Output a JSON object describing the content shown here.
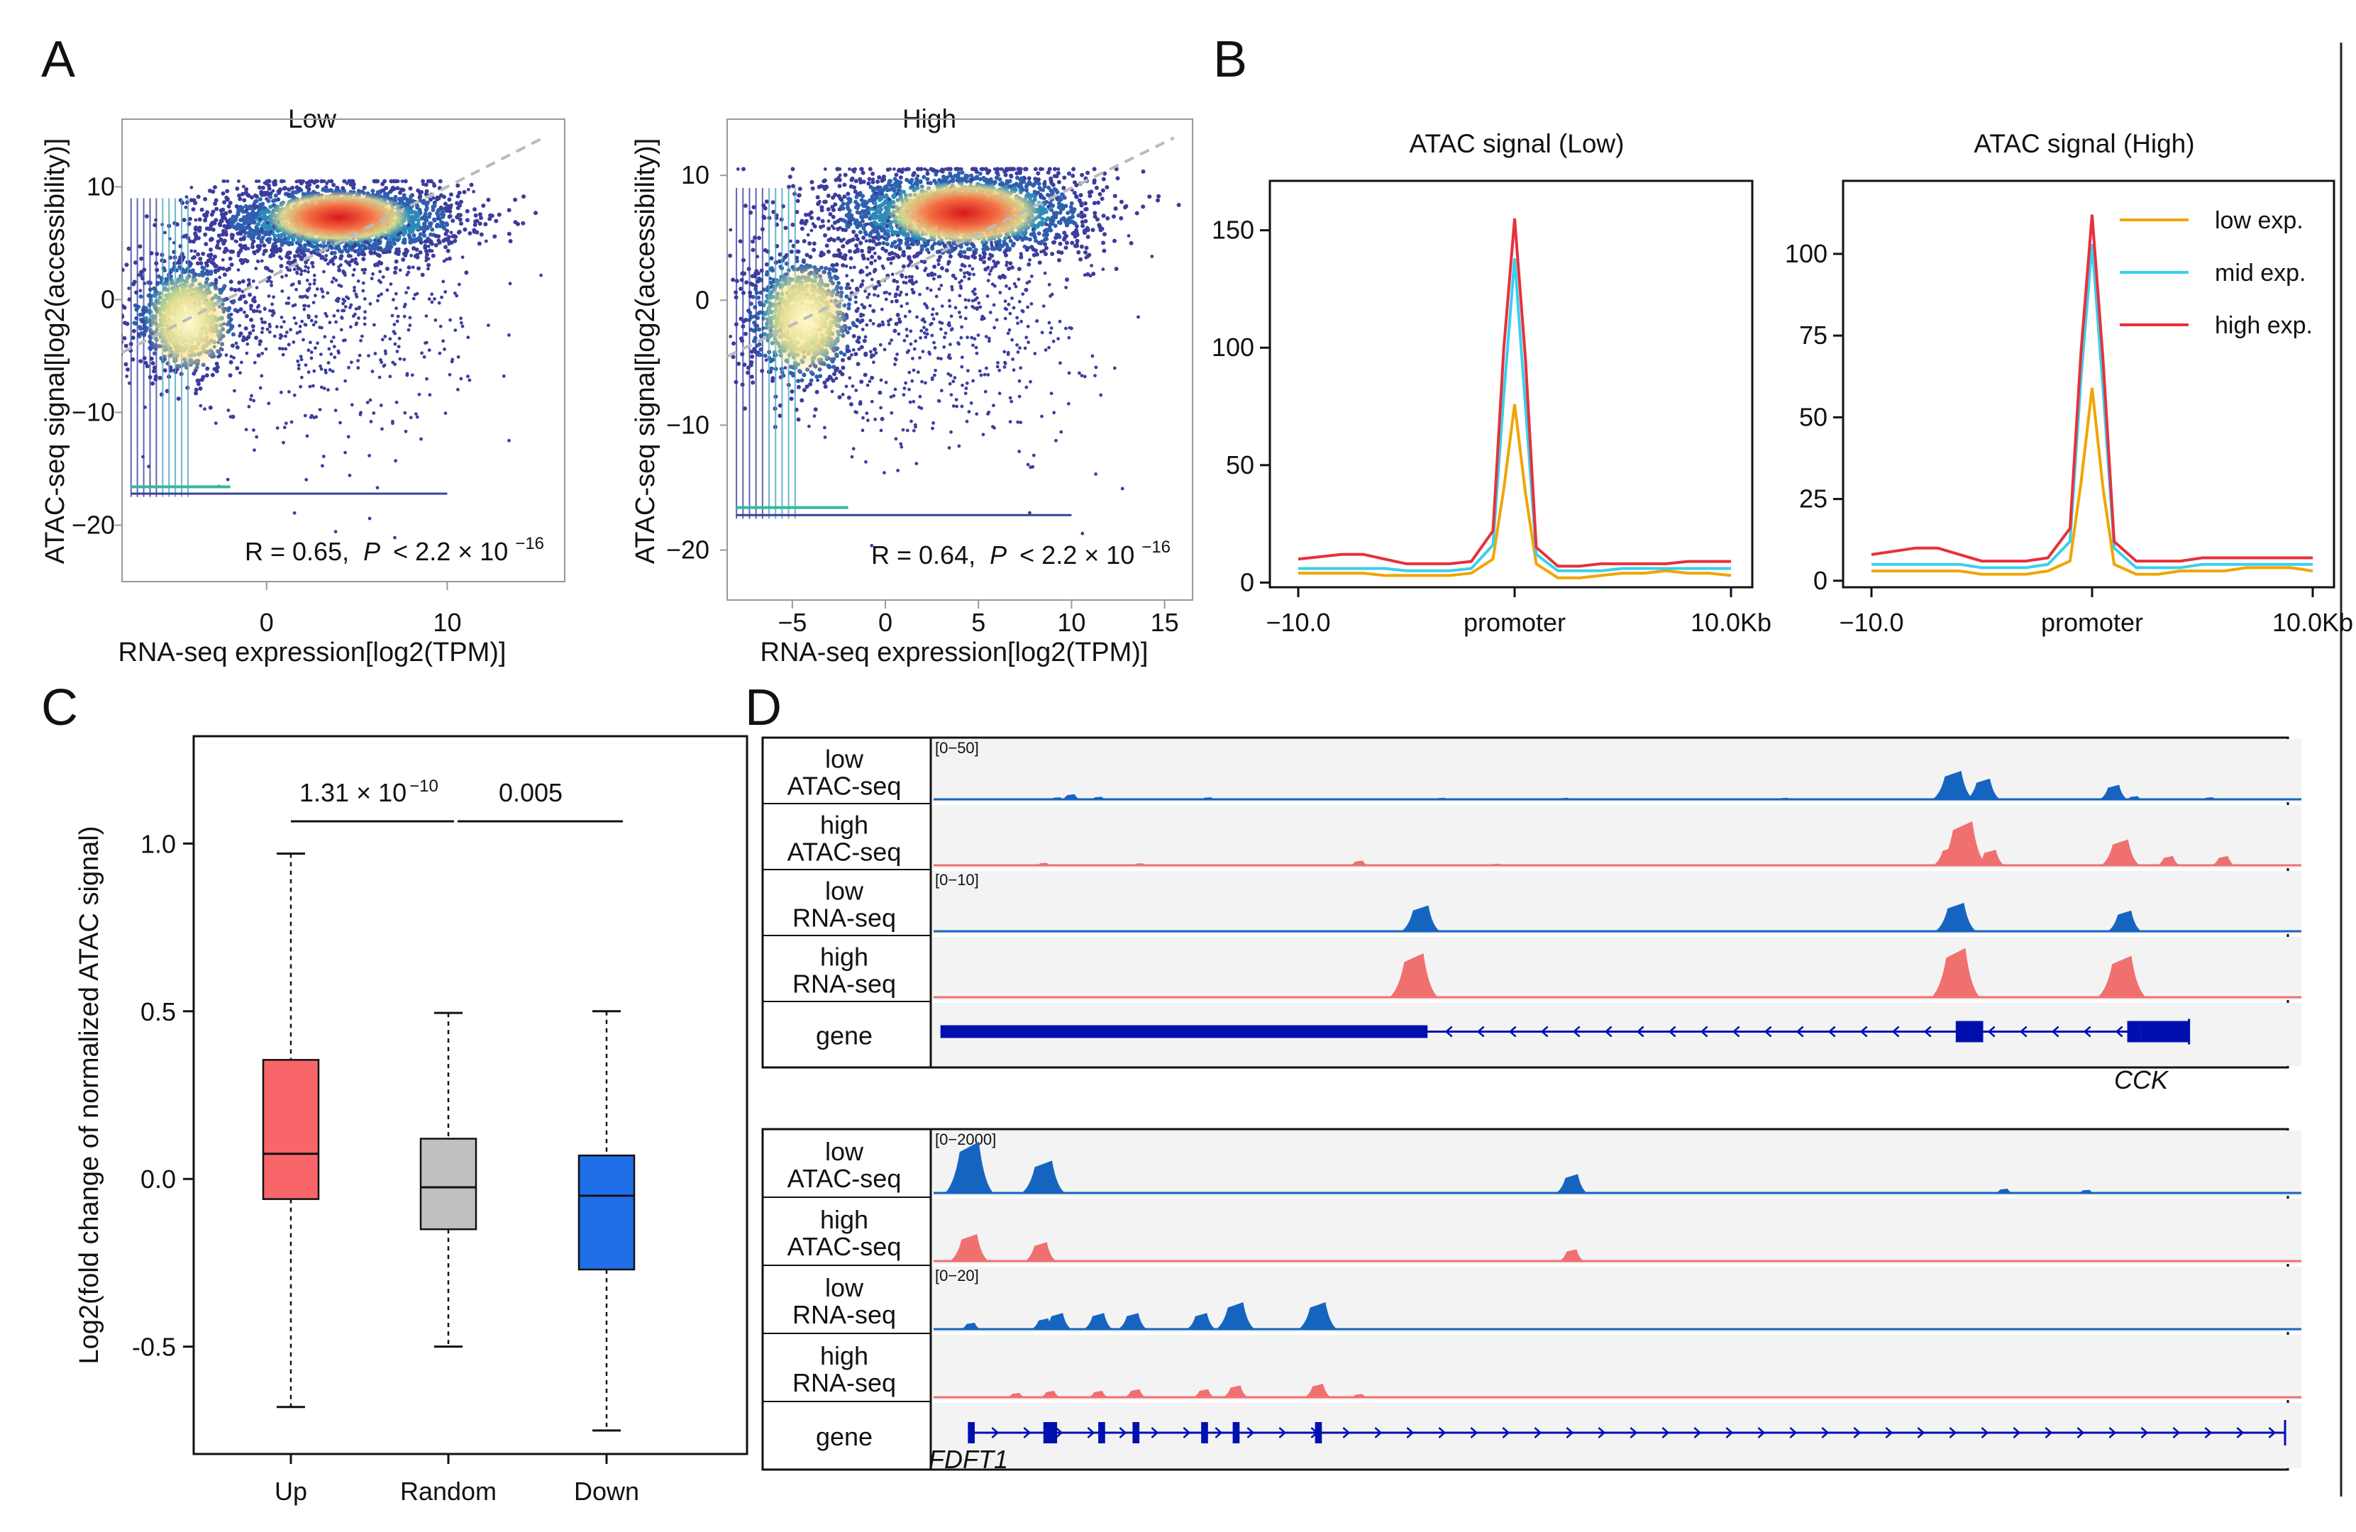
{
  "panel_labels": [
    "A",
    "B",
    "C",
    "D"
  ],
  "chart_data": [
    {
      "id": "A_low",
      "type": "scatter",
      "title": "Low",
      "xlabel": "RNA-seq expression[log2(TPM)]",
      "ylabel": "ATAC-seq signal[log2(accessibility)]",
      "xlim": [
        -8,
        16.5
      ],
      "ylim": [
        -25,
        16
      ],
      "xticks": [
        0,
        10
      ],
      "yticks": [
        10,
        0,
        -10,
        -20
      ],
      "annotation": {
        "R": "R = 0.65,",
        "P": "P",
        "text": "< 2.2 × 10",
        "exp": "−16"
      },
      "density_clusters": [
        {
          "x": 4,
          "y": 7,
          "sx": 3.4,
          "sy": 1.6,
          "n": 2200
        },
        {
          "x": -4.5,
          "y": -1.5,
          "sx": 1.6,
          "sy": 2.6,
          "n": 900
        },
        {
          "x": 3,
          "y": 0,
          "sx": 4,
          "sy": 6,
          "n": 700
        }
      ],
      "hotspots": [
        {
          "x": 4,
          "y": 7.3,
          "rx": 2.2,
          "ry": 1.3,
          "color": "#d7191c"
        },
        {
          "x": -4.3,
          "y": -2,
          "rx": 1.3,
          "ry": 2.5,
          "color": "#fff2b0"
        }
      ],
      "trend": {
        "x": [
          -8,
          15.5
        ],
        "y": [
          -4.7,
          14.5
        ]
      }
    },
    {
      "id": "A_high",
      "type": "scatter",
      "title": "High",
      "xlabel": "RNA-seq expression[log2(TPM)]",
      "ylabel": "ATAC-seq signal[log2(accessibility)]",
      "xlim": [
        -8.5,
        16.5
      ],
      "ylim": [
        -24,
        14.5
      ],
      "xticks": [
        -5,
        0,
        5,
        10,
        15
      ],
      "yticks": [
        10,
        0,
        -10,
        -20
      ],
      "annotation": {
        "R": "R = 0.64,",
        "P": "P",
        "text": "< 2.2 × 10",
        "exp": "−16"
      },
      "density_clusters": [
        {
          "x": 4,
          "y": 7,
          "sx": 3.6,
          "sy": 1.8,
          "n": 2200
        },
        {
          "x": -4.5,
          "y": -1.5,
          "sx": 1.6,
          "sy": 2.8,
          "n": 900
        },
        {
          "x": 3,
          "y": 0,
          "sx": 4,
          "sy": 6,
          "n": 700
        }
      ],
      "hotspots": [
        {
          "x": 4.2,
          "y": 7,
          "rx": 2.3,
          "ry": 1.4,
          "color": "#d7191c"
        },
        {
          "x": -4.3,
          "y": -1.5,
          "rx": 1.3,
          "ry": 2.5,
          "color": "#fff2b0"
        }
      ],
      "trend": {
        "x": [
          -8.5,
          15.5
        ],
        "y": [
          -4.5,
          13
        ]
      }
    },
    {
      "id": "B_low",
      "type": "line",
      "title": "ATAC signal (Low)",
      "x": [
        -10,
        -9,
        -8,
        -7,
        -6,
        -5,
        -4,
        -3,
        -2,
        -1,
        -0.5,
        0,
        0.5,
        1,
        2,
        3,
        4,
        5,
        6,
        7,
        8,
        9,
        10
      ],
      "xtick_labels": [
        "−10.0",
        "promoter",
        "10.0Kb"
      ],
      "xtick_positions": [
        -10,
        0,
        10
      ],
      "ylim": [
        -2,
        165
      ],
      "yticks": [
        0,
        50,
        100,
        150
      ],
      "series": [
        {
          "name": "low exp.",
          "color": "#f0a500",
          "values": [
            4,
            4,
            4,
            4,
            3,
            3,
            3,
            3,
            4,
            10,
            40,
            76,
            38,
            8,
            2,
            2,
            3,
            4,
            4,
            5,
            4,
            4,
            3
          ]
        },
        {
          "name": "mid exp.",
          "color": "#38d0ec",
          "values": [
            6,
            6,
            6,
            6,
            6,
            5,
            5,
            5,
            6,
            16,
            80,
            138,
            75,
            12,
            5,
            5,
            5,
            6,
            6,
            6,
            6,
            6,
            6
          ]
        },
        {
          "name": "high exp.",
          "color": "#e8303a",
          "values": [
            10,
            11,
            12,
            12,
            10,
            8,
            8,
            8,
            9,
            22,
            100,
            155,
            95,
            15,
            7,
            7,
            8,
            8,
            8,
            8,
            9,
            9,
            9
          ]
        }
      ]
    },
    {
      "id": "B_high",
      "type": "line",
      "title": "ATAC signal (High)",
      "x": [
        -10,
        -9,
        -8,
        -7,
        -6,
        -5,
        -4,
        -3,
        -2,
        -1,
        -0.5,
        0,
        0.5,
        1,
        2,
        3,
        4,
        5,
        6,
        7,
        8,
        9,
        10
      ],
      "xtick_labels": [
        "−10.0",
        "promoter",
        "10.0Kb"
      ],
      "xtick_positions": [
        -10,
        0,
        10
      ],
      "ylim": [
        -2,
        118
      ],
      "yticks": [
        0,
        25,
        50,
        75,
        100
      ],
      "legend": [
        "low exp.",
        "mid exp.",
        "high exp."
      ],
      "series": [
        {
          "name": "low exp.",
          "color": "#f0a500",
          "values": [
            3,
            3,
            3,
            3,
            3,
            2,
            2,
            2,
            3,
            6,
            30,
            59,
            28,
            5,
            2,
            2,
            3,
            3,
            3,
            4,
            4,
            4,
            3
          ]
        },
        {
          "name": "mid exp.",
          "color": "#38d0ec",
          "values": [
            5,
            5,
            5,
            5,
            5,
            4,
            4,
            4,
            5,
            12,
            62,
            103,
            58,
            10,
            4,
            4,
            4,
            5,
            5,
            5,
            5,
            5,
            5
          ]
        },
        {
          "name": "high exp.",
          "color": "#e8303a",
          "values": [
            8,
            9,
            10,
            10,
            8,
            6,
            6,
            6,
            7,
            16,
            70,
            112,
            67,
            12,
            6,
            6,
            6,
            7,
            7,
            7,
            7,
            7,
            7
          ]
        }
      ]
    },
    {
      "id": "C",
      "type": "box",
      "ylabel": "Log2(fold change of normalized ATAC signal)",
      "ylim": [
        -0.82,
        1.32
      ],
      "yticks": [
        "1.0",
        "0.5",
        "0.0",
        "-0.5"
      ],
      "ytick_values": [
        1.0,
        0.5,
        0.0,
        -0.5
      ],
      "categories": [
        "Up",
        "Random",
        "Down"
      ],
      "boxes": [
        {
          "name": "Up",
          "color": "#f8666a",
          "q1": -0.06,
          "median": 0.075,
          "q3": 0.355,
          "lower": -0.68,
          "upper": 0.97
        },
        {
          "name": "Random",
          "color": "#c0c0c0",
          "q1": -0.15,
          "median": -0.025,
          "q3": 0.12,
          "lower": -0.5,
          "upper": 0.495
        },
        {
          "name": "Down",
          "color": "#1f6fe8",
          "q1": -0.27,
          "median": -0.05,
          "q3": 0.07,
          "lower": -0.75,
          "upper": 0.5
        }
      ],
      "comparisons": [
        {
          "from": "Up",
          "to": "Random",
          "label": "1.31 × 10",
          "exp": "−10"
        },
        {
          "from": "Random",
          "to": "Down",
          "label": "0.005"
        }
      ]
    },
    {
      "id": "D_top",
      "type": "track",
      "gene": "CCK",
      "tracks": [
        {
          "label1": "low",
          "label2": "ATAC-seq",
          "range": "[0−50]",
          "color": "#1565c0",
          "peaks": [
            [
              0.09,
              0.04
            ],
            [
              0.1,
              0.1
            ],
            [
              0.12,
              0.05
            ],
            [
              0.2,
              0.04
            ],
            [
              0.3,
              0.02
            ],
            [
              0.37,
              0.03
            ],
            [
              0.46,
              0.03
            ],
            [
              0.62,
              0.03
            ],
            [
              0.74,
              0.04
            ],
            [
              0.743,
              0.55
            ],
            [
              0.765,
              0.4
            ],
            [
              0.86,
              0.28
            ],
            [
              0.875,
              0.06
            ],
            [
              0.93,
              0.04
            ]
          ]
        },
        {
          "label1": "high",
          "label2": "ATAC-seq",
          "range": "",
          "color": "#f07070",
          "peaks": [
            [
              0.08,
              0.05
            ],
            [
              0.15,
              0.04
            ],
            [
              0.31,
              0.09
            ],
            [
              0.41,
              0.03
            ],
            [
              0.74,
              0.35
            ],
            [
              0.75,
              0.85
            ],
            [
              0.77,
              0.3
            ],
            [
              0.865,
              0.5
            ],
            [
              0.9,
              0.18
            ],
            [
              0.94,
              0.18
            ]
          ]
        },
        {
          "label1": "low",
          "label2": "RNA-seq",
          "range": "[0−10]",
          "color": "#1565c0",
          "peaks": [
            [
              0.355,
              0.5
            ],
            [
              0.745,
              0.55
            ],
            [
              0.868,
              0.4
            ]
          ]
        },
        {
          "label1": "high",
          "label2": "RNA-seq",
          "range": "",
          "color": "#f07070",
          "peaks": [
            [
              0.35,
              0.85
            ],
            [
              0.745,
              0.95
            ],
            [
              0.866,
              0.8
            ]
          ]
        }
      ],
      "gene_track": {
        "label": "gene",
        "direction": "left",
        "exons": [
          [
            0.005,
            0.36
          ],
          [
            0.745,
            0.765
          ],
          [
            0.87,
            0.88
          ],
          [
            0.88,
            0.915
          ]
        ]
      }
    },
    {
      "id": "D_bottom",
      "type": "track",
      "gene": "FDFT1",
      "tracks": [
        {
          "label1": "low",
          "label2": "ATAC-seq",
          "range": "[0−2000]",
          "color": "#1565c0",
          "peaks": [
            [
              0.026,
              0.95
            ],
            [
              0.08,
              0.6
            ],
            [
              0.465,
              0.35
            ],
            [
              0.78,
              0.08
            ],
            [
              0.84,
              0.06
            ]
          ]
        },
        {
          "label1": "high",
          "label2": "ATAC-seq",
          "range": "",
          "color": "#f07070",
          "peaks": [
            [
              0.026,
              0.5
            ],
            [
              0.078,
              0.35
            ],
            [
              0.465,
              0.22
            ]
          ]
        },
        {
          "label1": "low",
          "label2": "RNA-seq",
          "range": "[0−20]",
          "color": "#1565c0",
          "peaks": [
            [
              0.027,
              0.12
            ],
            [
              0.08,
              0.2
            ],
            [
              0.09,
              0.3
            ],
            [
              0.12,
              0.3
            ],
            [
              0.145,
              0.3
            ],
            [
              0.195,
              0.3
            ],
            [
              0.22,
              0.5
            ],
            [
              0.28,
              0.5
            ]
          ]
        },
        {
          "label1": "high",
          "label2": "RNA-seq",
          "range": "",
          "color": "#f07070",
          "peaks": [
            [
              0.06,
              0.08
            ],
            [
              0.085,
              0.12
            ],
            [
              0.12,
              0.12
            ],
            [
              0.147,
              0.15
            ],
            [
              0.197,
              0.15
            ],
            [
              0.22,
              0.22
            ],
            [
              0.28,
              0.25
            ],
            [
              0.31,
              0.06
            ]
          ]
        }
      ],
      "gene_track": {
        "label": "gene",
        "direction": "right",
        "exons": [
          [
            0.025,
            0.03
          ],
          [
            0.08,
            0.09
          ],
          [
            0.12,
            0.125
          ],
          [
            0.145,
            0.15
          ],
          [
            0.195,
            0.2
          ],
          [
            0.218,
            0.223
          ],
          [
            0.278,
            0.283
          ]
        ]
      }
    }
  ]
}
